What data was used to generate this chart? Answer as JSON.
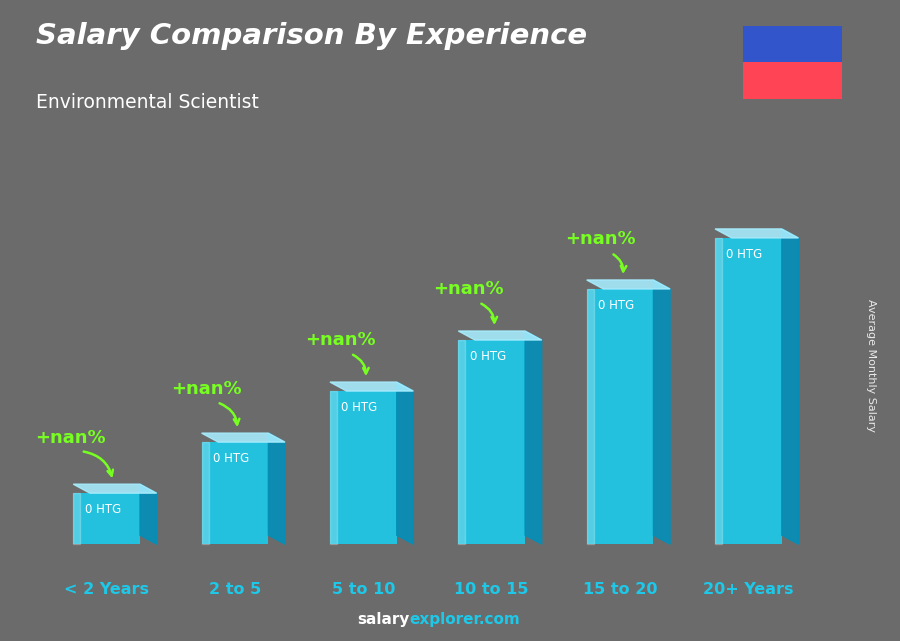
{
  "title": "Salary Comparison By Experience",
  "subtitle": "Environmental Scientist",
  "categories": [
    "< 2 Years",
    "2 to 5",
    "5 to 10",
    "10 to 15",
    "15 to 20",
    "20+ Years"
  ],
  "values": [
    1,
    2,
    3,
    4,
    5,
    6
  ],
  "bar_color_main": "#1EC8E8",
  "top_color": "#A8EEFF",
  "side_color": "#0090BB",
  "bar_labels": [
    "0 HTG",
    "0 HTG",
    "0 HTG",
    "0 HTG",
    "0 HTG",
    "0 HTG"
  ],
  "increase_labels": [
    "+nan%",
    "+nan%",
    "+nan%",
    "+nan%",
    "+nan%"
  ],
  "title_color": "#FFFFFF",
  "subtitle_color": "#FFFFFF",
  "increase_color": "#77FF22",
  "xlabel_color": "#1EC8E8",
  "footer_salary": "salary",
  "footer_rest": "explorer.com",
  "ylabel_text": "Average Monthly Salary",
  "flag_blue": "#3355CC",
  "flag_red": "#FF4455",
  "background_color": "#6B6B6B"
}
